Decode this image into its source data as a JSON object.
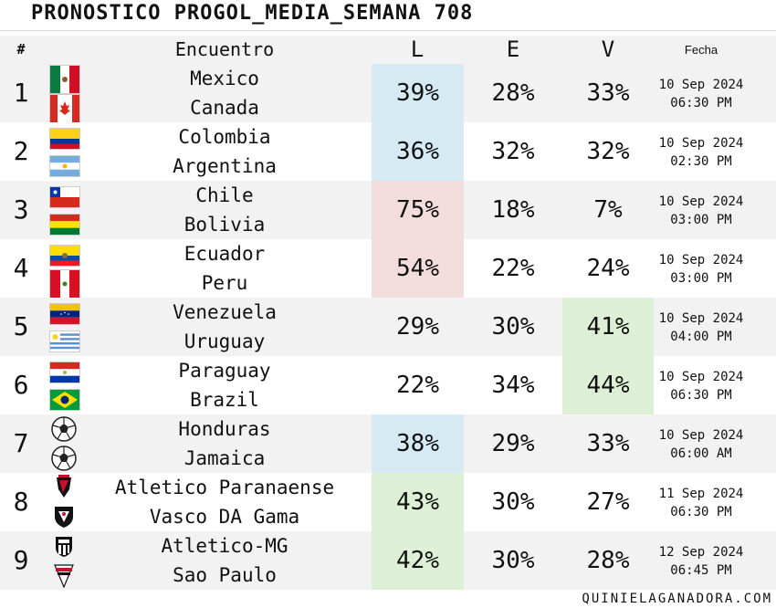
{
  "title": "PRONOSTICO PROGOL_MEDIA_SEMANA 708",
  "header": {
    "num": "#",
    "encuentro": "Encuentro",
    "l": "L",
    "e": "E",
    "v": "V",
    "fecha": "Fecha"
  },
  "colors": {
    "blue": "#d6eaf4",
    "red": "#f3dcdc",
    "green": "#ddf0d5",
    "row_alt": "#f2f2f2"
  },
  "matches": [
    {
      "num": "1",
      "home": "Mexico",
      "away": "Canada",
      "home_icon": "mexico-flag-icon",
      "away_icon": "canada-flag-icon",
      "l": "39%",
      "e": "28%",
      "v": "33%",
      "highlight": "l",
      "hcolor": "#d6eaf4",
      "date": "10 Sep 2024",
      "time": "06:30 PM"
    },
    {
      "num": "2",
      "home": "Colombia",
      "away": "Argentina",
      "home_icon": "colombia-flag-icon",
      "away_icon": "argentina-flag-icon",
      "l": "36%",
      "e": "32%",
      "v": "32%",
      "highlight": "l",
      "hcolor": "#d6eaf4",
      "date": "10 Sep 2024",
      "time": "02:30 PM"
    },
    {
      "num": "3",
      "home": "Chile",
      "away": "Bolivia",
      "home_icon": "chile-flag-icon",
      "away_icon": "bolivia-flag-icon",
      "l": "75%",
      "e": "18%",
      "v": "7%",
      "highlight": "l",
      "hcolor": "#f3dcdc",
      "date": "10 Sep 2024",
      "time": "03:00 PM"
    },
    {
      "num": "4",
      "home": "Ecuador",
      "away": "Peru",
      "home_icon": "ecuador-flag-icon",
      "away_icon": "peru-flag-icon",
      "l": "54%",
      "e": "22%",
      "v": "24%",
      "highlight": "l",
      "hcolor": "#f3dcdc",
      "date": "10 Sep 2024",
      "time": "03:00 PM"
    },
    {
      "num": "5",
      "home": "Venezuela",
      "away": "Uruguay",
      "home_icon": "venezuela-flag-icon",
      "away_icon": "uruguay-flag-icon",
      "l": "29%",
      "e": "30%",
      "v": "41%",
      "highlight": "v",
      "hcolor": "#ddf0d5",
      "date": "10 Sep 2024",
      "time": "04:00 PM"
    },
    {
      "num": "6",
      "home": "Paraguay",
      "away": "Brazil",
      "home_icon": "paraguay-flag-icon",
      "away_icon": "brazil-flag-icon",
      "l": "22%",
      "e": "34%",
      "v": "44%",
      "highlight": "v",
      "hcolor": "#ddf0d5",
      "date": "10 Sep 2024",
      "time": "06:30 PM"
    },
    {
      "num": "7",
      "home": "Honduras",
      "away": "Jamaica",
      "home_icon": "soccer-ball-icon",
      "away_icon": "soccer-ball-icon",
      "l": "38%",
      "e": "29%",
      "v": "33%",
      "highlight": "l",
      "hcolor": "#d6eaf4",
      "date": "10 Sep 2024",
      "time": "06:00 AM"
    },
    {
      "num": "8",
      "home": "Atletico Paranaense",
      "away": "Vasco DA Gama",
      "home_icon": "athletico-paranaense-crest-icon",
      "away_icon": "vasco-da-gama-crest-icon",
      "l": "43%",
      "e": "30%",
      "v": "27%",
      "highlight": "l",
      "hcolor": "#ddf0d5",
      "date": "11 Sep 2024",
      "time": "06:30 PM"
    },
    {
      "num": "9",
      "home": "Atletico-MG",
      "away": "Sao Paulo",
      "home_icon": "atletico-mg-crest-icon",
      "away_icon": "sao-paulo-crest-icon",
      "l": "42%",
      "e": "30%",
      "v": "28%",
      "highlight": "l",
      "hcolor": "#ddf0d5",
      "date": "12 Sep 2024",
      "time": "06:45 PM"
    }
  ],
  "footer": "QUINIELAGANADORA.COM"
}
